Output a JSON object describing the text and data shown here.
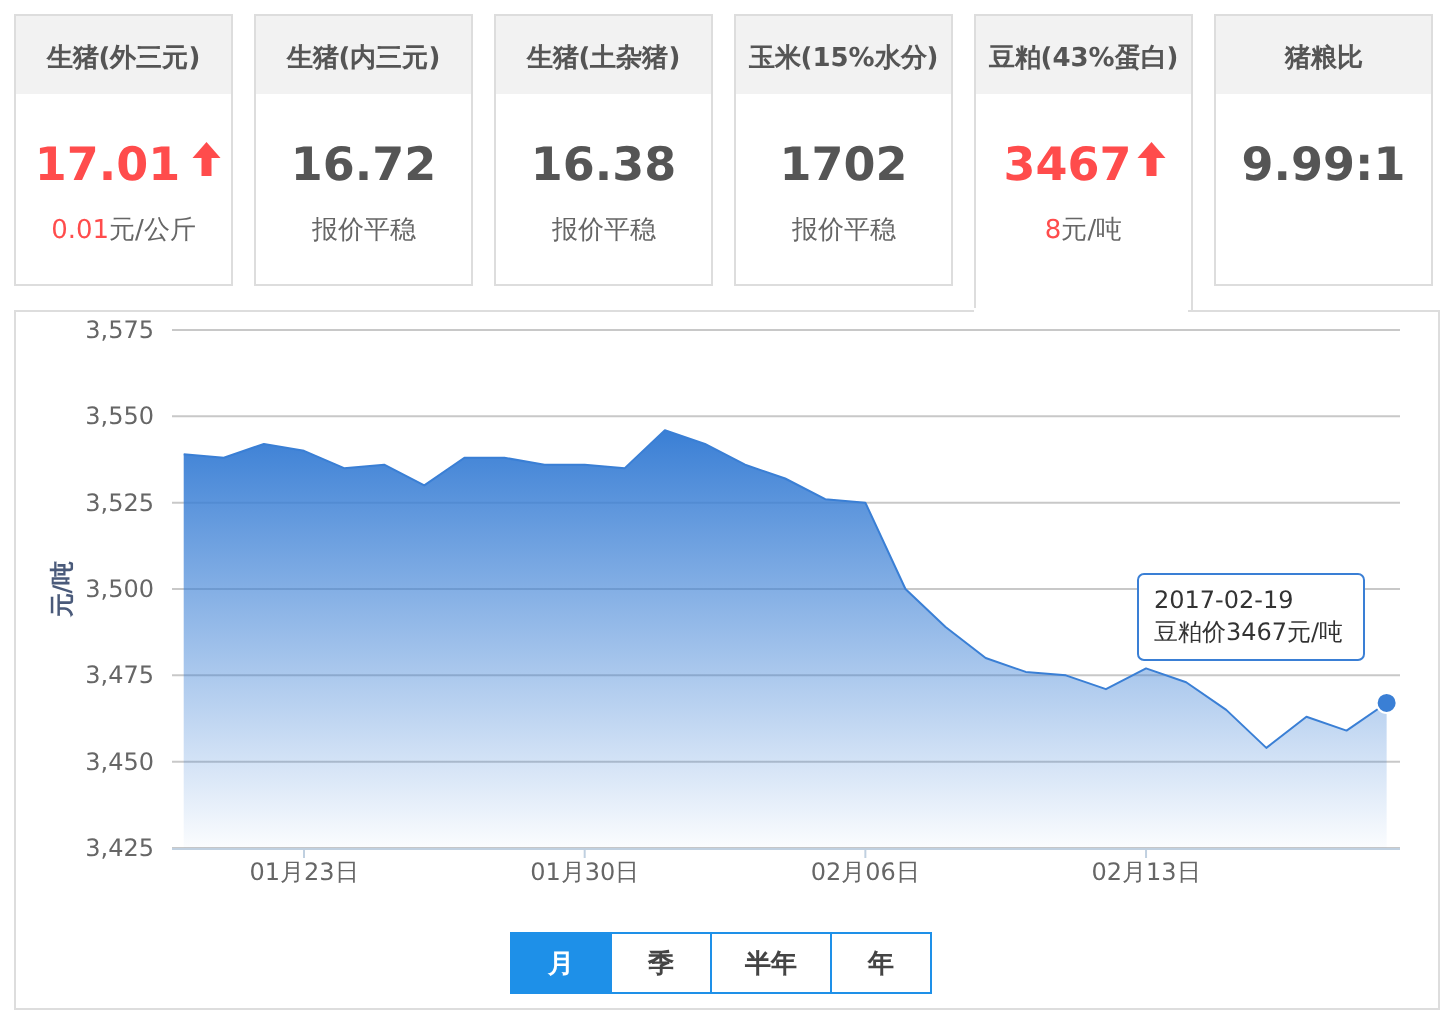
{
  "chart_data": [
    {
      "type": "other",
      "categories": [
        "生猪(外三元)",
        "生猪(内三元)",
        "生猪(土杂猪)",
        "玉米(15%水分)",
        "豆粕(43%蛋白)",
        "猪粮比"
      ],
      "value_labels": [
        "17.01",
        "16.72",
        "16.38",
        "1702",
        "3467",
        "9.99:1"
      ],
      "annotations": [
        "0.01元/公斤",
        "报价平稳",
        "报价平稳",
        "报价平稳",
        "8元/吨"
      ]
    },
    {
      "type": "area",
      "x": [
        "2017-01-20",
        "2017-01-21",
        "2017-01-22",
        "2017-01-23",
        "2017-01-24",
        "2017-01-25",
        "2017-01-26",
        "2017-01-27",
        "2017-01-28",
        "2017-01-29",
        "2017-01-30",
        "2017-01-31",
        "2017-02-01",
        "2017-02-02",
        "2017-02-03",
        "2017-02-04",
        "2017-02-05",
        "2017-02-06",
        "2017-02-07",
        "2017-02-08",
        "2017-02-09",
        "2017-02-10",
        "2017-02-11",
        "2017-02-12",
        "2017-02-13",
        "2017-02-14",
        "2017-02-15",
        "2017-02-16",
        "2017-02-17",
        "2017-02-18",
        "2017-02-19"
      ],
      "series": [
        {
          "color": "#3a7fd5",
          "values": [
            3539,
            3538,
            3542,
            3540,
            3535,
            3536,
            3530,
            3538,
            3538,
            3536,
            3536,
            3535,
            3546,
            3542,
            3536,
            3532,
            3526,
            3525,
            3500,
            3489,
            3480,
            3476,
            3475,
            3471,
            3477,
            3473,
            3465,
            3454,
            3463,
            3459,
            3467
          ]
        }
      ],
      "ylabel": "元/吨",
      "xlim": [
        "2017-01-19T17:00",
        "2017-02-19T08:00"
      ],
      "xticks": [
        {
          "value": "2017-01-23",
          "label": "01月23日"
        },
        {
          "value": "2017-01-30",
          "label": "01月30日"
        },
        {
          "value": "2017-02-06",
          "label": "02月06日"
        },
        {
          "value": "2017-02-13",
          "label": "02月13日"
        }
      ],
      "ylim": [
        3425,
        3575
      ],
      "yticks": [
        {
          "value": 3425,
          "label": "3,425"
        },
        {
          "value": 3450,
          "label": "3,450"
        },
        {
          "value": 3475,
          "label": "3,475"
        },
        {
          "value": 3500,
          "label": "3,500"
        },
        {
          "value": 3525,
          "label": "3,525"
        },
        {
          "value": 3550,
          "label": "3,550"
        },
        {
          "value": 3575,
          "label": "3,575"
        }
      ],
      "grid": "y",
      "annotations": [
        {
          "text": "2017-02-19\n豆粕价3467元/吨",
          "x": "2017-02-19",
          "y": 3467
        },
        "月",
        "季",
        "半年",
        "年"
      ]
    }
  ]
}
